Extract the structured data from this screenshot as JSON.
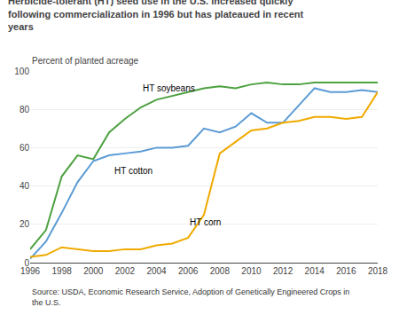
{
  "chart_data": {
    "type": "line",
    "title": "Herbicide-tolerant (HT) seed use in the U.S. increased quickly following commercialization in 1996 but has plateaued in recent years",
    "ylabel": "Percent of planted acreage",
    "source": "Source: USDA, Economic Research Service, Adoption of Genetically Engineered Crops in the U.S.",
    "x": [
      1996,
      1997,
      1998,
      1999,
      2000,
      2001,
      2002,
      2003,
      2004,
      2005,
      2006,
      2007,
      2008,
      2009,
      2010,
      2011,
      2012,
      2013,
      2014,
      2015,
      2016,
      2017,
      2018
    ],
    "series": [
      {
        "name": "HT soybeans",
        "color": "#4da140",
        "values": [
          7,
          17,
          45,
          56,
          54,
          68,
          75,
          81,
          85,
          87,
          89,
          91,
          92,
          91,
          93,
          94,
          93,
          93,
          94,
          94,
          94,
          94,
          94
        ]
      },
      {
        "name": "HT cotton",
        "color": "#5b9bd5",
        "values": [
          2,
          11,
          26,
          42,
          53,
          56,
          57,
          58,
          60,
          60,
          61,
          70,
          68,
          71,
          78,
          73,
          73,
          82,
          91,
          89,
          89,
          90,
          89
        ]
      },
      {
        "name": "HT corn",
        "color": "#f0aa00",
        "values": [
          3,
          4,
          8,
          7,
          6,
          6,
          7,
          7,
          9,
          10,
          13,
          25,
          57,
          63,
          69,
          70,
          73,
          74,
          76,
          76,
          75,
          76,
          89
        ]
      }
    ],
    "annotations": [
      {
        "text": "HT soybeans",
        "x": 2003.0,
        "y": 87.5
      },
      {
        "text": "HT cotton",
        "x": 2001.2,
        "y": 44.5
      },
      {
        "text": "HT corn",
        "x": 2006.0,
        "y": 17.5
      }
    ],
    "xlim": [
      1996,
      2018
    ],
    "ylim": [
      0,
      100
    ],
    "xticks": [
      1996,
      1998,
      2000,
      2002,
      2004,
      2006,
      2008,
      2010,
      2012,
      2014,
      2016,
      2018
    ],
    "yticks": [
      0,
      20,
      40,
      60,
      80,
      100
    ],
    "grid": true
  }
}
